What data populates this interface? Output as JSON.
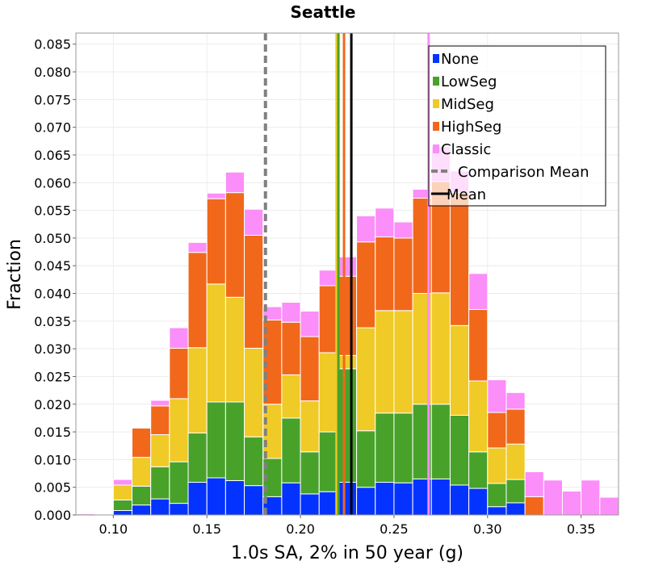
{
  "chart_data": {
    "type": "bar",
    "stacked": true,
    "title": "Seattle",
    "xlabel": "1.0s SA, 2% in 50 year (g)",
    "ylabel": "Fraction",
    "xlim": [
      0.08,
      0.37
    ],
    "ylim": [
      0.0,
      0.087
    ],
    "bin_width": 0.01,
    "xticks": [
      "0.10",
      "0.15",
      "0.20",
      "0.25",
      "0.30",
      "0.35"
    ],
    "xtick_values": [
      0.1,
      0.15,
      0.2,
      0.25,
      0.3,
      0.35
    ],
    "yticks": [
      "0.000",
      "0.005",
      "0.010",
      "0.015",
      "0.020",
      "0.025",
      "0.030",
      "0.035",
      "0.040",
      "0.045",
      "0.050",
      "0.055",
      "0.060",
      "0.065",
      "0.070",
      "0.075",
      "0.080",
      "0.085"
    ],
    "ytick_values": [
      0.0,
      0.005,
      0.01,
      0.015,
      0.02,
      0.025,
      0.03,
      0.035,
      0.04,
      0.045,
      0.05,
      0.055,
      0.06,
      0.065,
      0.07,
      0.075,
      0.08,
      0.085
    ],
    "grid": true,
    "legend_position": "top-right",
    "bin_starts": [
      0.08,
      0.09,
      0.1,
      0.11,
      0.12,
      0.13,
      0.14,
      0.15,
      0.16,
      0.17,
      0.18,
      0.19,
      0.2,
      0.21,
      0.22,
      0.23,
      0.24,
      0.25,
      0.26,
      0.27,
      0.28,
      0.29,
      0.3,
      0.31,
      0.32,
      0.33,
      0.34,
      0.35,
      0.36
    ],
    "series": [
      {
        "name": "None",
        "color": "#0433ff",
        "values": [
          0,
          0,
          0.0008,
          0.0018,
          0.0029,
          0.0021,
          0.0059,
          0.0067,
          0.0062,
          0.0053,
          0.0033,
          0.0058,
          0.0038,
          0.0042,
          0.0059,
          0.005,
          0.0059,
          0.0058,
          0.0065,
          0.0065,
          0.0054,
          0.0048,
          0.0015,
          0.0022,
          0,
          0,
          0,
          0,
          0
        ]
      },
      {
        "name": "LowSeg",
        "color": "#48a22a",
        "values": [
          0,
          0,
          0.0019,
          0.0034,
          0.0058,
          0.0075,
          0.0089,
          0.0137,
          0.0142,
          0.0088,
          0.0069,
          0.0117,
          0.0076,
          0.0108,
          0.0205,
          0.0102,
          0.0125,
          0.0126,
          0.0135,
          0.0135,
          0.0126,
          0.0066,
          0.0042,
          0.0042,
          0,
          0,
          0,
          0,
          0
        ]
      },
      {
        "name": "MidSeg",
        "color": "#f0ca26",
        "values": [
          0,
          0,
          0.0027,
          0.0052,
          0.0058,
          0.0114,
          0.0154,
          0.0213,
          0.0189,
          0.016,
          0.0098,
          0.0078,
          0.0092,
          0.0143,
          0.0024,
          0.0186,
          0.0185,
          0.0185,
          0.02,
          0.0201,
          0.0162,
          0.0128,
          0.0064,
          0.0064,
          0,
          0,
          0,
          0,
          0
        ]
      },
      {
        "name": "HighSeg",
        "color": "#f1681a",
        "values": [
          0,
          0,
          0,
          0.0053,
          0.0052,
          0.0091,
          0.0172,
          0.0154,
          0.0189,
          0.0204,
          0.0152,
          0.0095,
          0.0116,
          0.0121,
          0.0143,
          0.0155,
          0.0133,
          0.0131,
          0.0172,
          0.0201,
          0.024,
          0.0129,
          0.0064,
          0.0063,
          0.0033,
          0,
          0,
          0,
          0
        ]
      },
      {
        "name": "Classic",
        "color": "#fb8ef8",
        "values": [
          0.0002,
          0,
          0.001,
          0.0001,
          0.001,
          0.0037,
          0.0018,
          0.001,
          0.0037,
          0.0047,
          0.0024,
          0.0036,
          0.0046,
          0.0028,
          0.0035,
          0.0047,
          0.0052,
          0.0029,
          0.0016,
          0.0063,
          0.0039,
          0.0065,
          0.0059,
          0.003,
          0.0045,
          0.0063,
          0.0043,
          0.0063,
          0.0032
        ]
      }
    ],
    "vertical_lines": [
      {
        "name": "Comparison Mean",
        "x": 0.1813,
        "color": "#808080",
        "style": "dashed",
        "legend": true
      },
      {
        "name": "Mean",
        "x": 0.2272,
        "color": "#000000",
        "style": "solid",
        "legend": true
      },
      {
        "name": "",
        "x": 0.2193,
        "color": "#f0ca26",
        "style": "solid",
        "legend": false
      },
      {
        "name": "",
        "x": 0.2203,
        "color": "#48a22a",
        "style": "solid",
        "legend": false
      },
      {
        "name": "",
        "x": 0.2233,
        "color": "#f1681a",
        "style": "solid",
        "legend": false
      },
      {
        "name": "",
        "x": 0.2685,
        "color": "#fb8ef8",
        "style": "solid",
        "legend": false
      }
    ]
  }
}
